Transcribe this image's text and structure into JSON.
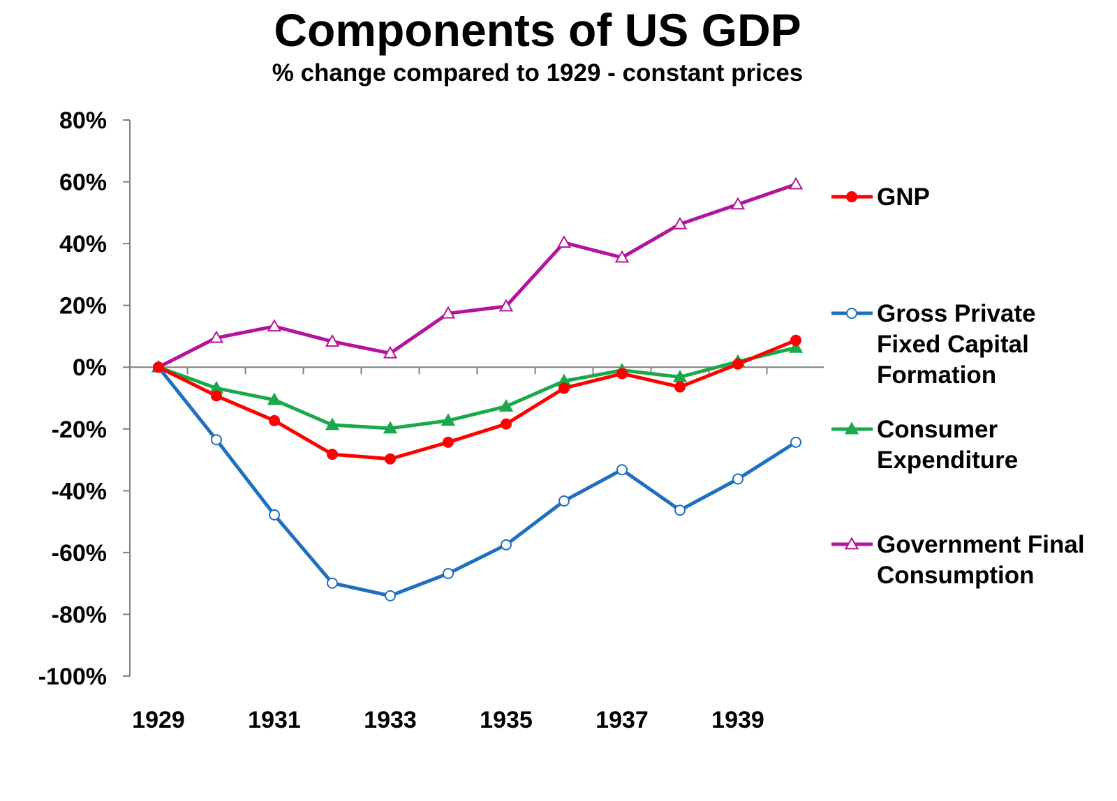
{
  "chart_data": {
    "type": "line",
    "title": "Components of US GDP",
    "subtitle": "% change compared to 1929 - constant prices",
    "xlabel": "",
    "ylabel": "",
    "x": [
      1929,
      1930,
      1931,
      1932,
      1933,
      1934,
      1935,
      1936,
      1937,
      1938,
      1939,
      1940
    ],
    "x_tick_labels": [
      "1929",
      "1931",
      "1933",
      "1935",
      "1937",
      "1939"
    ],
    "ylim": [
      -100,
      80
    ],
    "y_ticks": [
      80,
      60,
      40,
      20,
      0,
      -20,
      -40,
      -60,
      -80,
      -100
    ],
    "y_tick_labels": [
      "80%",
      "60%",
      "40%",
      "20%",
      "0%",
      "-20%",
      "-40%",
      "-60%",
      "-80%",
      "-100%"
    ],
    "grid": false,
    "legend_position": "right",
    "series": [
      {
        "name": "GNP",
        "legend_lines": [
          "GNP"
        ],
        "color": "#ff0000",
        "marker": "filled-circle",
        "values": [
          0,
          -9.3,
          -17.3,
          -28.2,
          -29.7,
          -24.3,
          -18.4,
          -6.8,
          -2.1,
          -6.4,
          1.0,
          8.7
        ]
      },
      {
        "name": "Gross Private Fixed Capital Formation",
        "legend_lines": [
          "Gross Private",
          "Fixed Capital",
          "Formation"
        ],
        "color": "#1f6fc0",
        "marker": "hollow-circle",
        "values": [
          0,
          -23.5,
          -47.8,
          -69.9,
          -74.0,
          -66.8,
          -57.5,
          -43.3,
          -33.2,
          -46.3,
          -36.2,
          -24.3
        ]
      },
      {
        "name": "Consumer Expenditure",
        "legend_lines": [
          "Consumer",
          "Expenditure"
        ],
        "color": "#1aa84a",
        "marker": "filled-triangle",
        "values": [
          0,
          -6.8,
          -10.6,
          -18.7,
          -19.8,
          -17.3,
          -12.7,
          -4.5,
          -1.0,
          -3.2,
          1.8,
          6.3
        ]
      },
      {
        "name": "Government Final Consumption",
        "legend_lines": [
          "Government Final",
          "Consumption"
        ],
        "color": "#b4139b",
        "marker": "hollow-triangle",
        "values": [
          0,
          9.5,
          13.2,
          8.3,
          4.5,
          17.4,
          19.7,
          40.3,
          35.5,
          46.3,
          52.7,
          59.2
        ]
      }
    ]
  }
}
